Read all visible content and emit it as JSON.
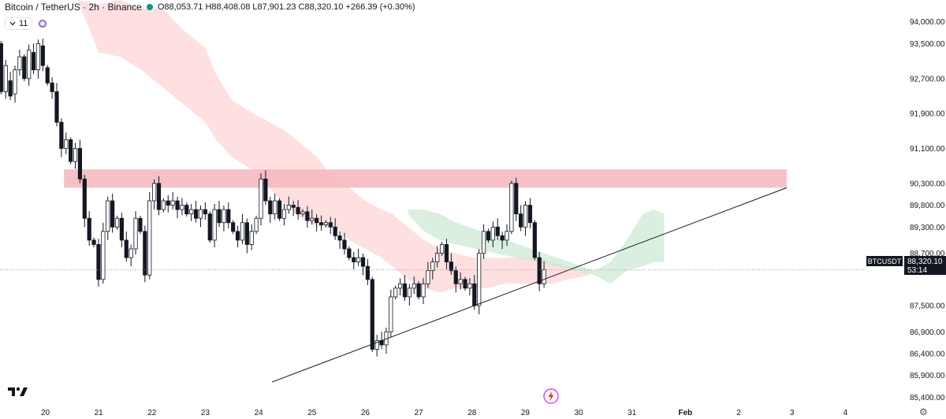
{
  "header": {
    "symbol": "Bitcoin / TetherUS · 2h · Binance",
    "open": "O88,053.71",
    "high": "H88,408.08",
    "low": "L87,901.23",
    "close": "C88,320.10",
    "change": "+266.39 (+0.30%)",
    "indicator_count": "11"
  },
  "colors": {
    "up": "#131722",
    "down": "#131722",
    "resistance_zone": "#f4b6bc",
    "cloud_bear": "#ffd6d6",
    "cloud_bull": "#cde9d4",
    "status_dot": "#089981"
  },
  "chart_data": {
    "type": "candlestick",
    "ylim": [
      85300,
      94500
    ],
    "y_ticks": [
      "94,000.00",
      "93,500.00",
      "92,700.00",
      "91,900.00",
      "91,100.00",
      "90,300.00",
      "89,800.00",
      "89,300.00",
      "88,700.00",
      "87,500.00",
      "86,900.00",
      "86,400.00",
      "85,900.00",
      "85,400.00"
    ],
    "y_tick_values": [
      94000,
      93500,
      92700,
      91900,
      91100,
      90300,
      89800,
      89300,
      88700,
      87500,
      86900,
      86400,
      85900,
      85400
    ],
    "x_ticks": [
      "20",
      "21",
      "22",
      "23",
      "24",
      "25",
      "26",
      "27",
      "28",
      "29",
      "30",
      "31",
      "Feb",
      "2",
      "3",
      "4"
    ],
    "x_tick_days": [
      20,
      21,
      22,
      23,
      24,
      25,
      26,
      27,
      28,
      29,
      30,
      31,
      32,
      33,
      34,
      35
    ],
    "xlim_days": [
      19.15,
      36.0
    ],
    "price_label": {
      "symbol": "BTCUSDT",
      "value": "88,320.10",
      "countdown": "53:14",
      "price": 88320.1
    },
    "resistance_zone": {
      "low": 90200,
      "high": 90620,
      "from_day": 20.35,
      "to_day": 33.9
    },
    "trendline": {
      "from": {
        "day": 24.25,
        "price": 85750
      },
      "to": {
        "day": 33.9,
        "price": 90200
      }
    },
    "candles": [
      [
        93500,
        92400
      ],
      [
        92400,
        93000
      ],
      [
        92650,
        92300
      ],
      [
        92350,
        92900
      ],
      [
        92900,
        93200
      ],
      [
        93200,
        92700
      ],
      [
        92700,
        93350
      ],
      [
        93300,
        92900
      ],
      [
        92900,
        93500
      ],
      [
        93450,
        93000
      ],
      [
        92950,
        92600
      ],
      [
        92600,
        92400
      ],
      [
        92400,
        91700
      ],
      [
        91700,
        91100
      ],
      [
        91100,
        91300
      ],
      [
        91300,
        90800
      ],
      [
        90800,
        91100
      ],
      [
        91100,
        90400
      ],
      [
        90400,
        89500
      ],
      [
        89500,
        89000
      ],
      [
        89000,
        88900
      ],
      [
        88900,
        88100
      ],
      [
        88100,
        89200
      ],
      [
        89200,
        89900
      ],
      [
        89900,
        89300
      ],
      [
        89300,
        89500
      ],
      [
        89500,
        89000
      ],
      [
        89000,
        88600
      ],
      [
        88600,
        88800
      ],
      [
        88800,
        89500
      ],
      [
        89500,
        89200
      ],
      [
        89200,
        88200
      ],
      [
        88200,
        89900
      ],
      [
        89900,
        90300
      ],
      [
        90300,
        89700
      ],
      [
        89700,
        89900
      ],
      [
        89900,
        89800
      ],
      [
        89800,
        89900
      ],
      [
        89900,
        89700
      ],
      [
        89700,
        89800
      ],
      [
        89800,
        89600
      ],
      [
        89600,
        89700
      ],
      [
        89700,
        89500
      ],
      [
        89500,
        89700
      ],
      [
        89700,
        89600
      ],
      [
        89600,
        89000
      ],
      [
        89000,
        89700
      ],
      [
        89700,
        89400
      ],
      [
        89400,
        89700
      ],
      [
        89700,
        89400
      ],
      [
        89400,
        89200
      ],
      [
        89200,
        89000
      ],
      [
        89000,
        89400
      ],
      [
        89400,
        88900
      ],
      [
        88900,
        89200
      ],
      [
        89200,
        89500
      ],
      [
        89500,
        90400
      ],
      [
        90400,
        89900
      ],
      [
        89900,
        89600
      ],
      [
        89600,
        89900
      ],
      [
        89900,
        89500
      ],
      [
        89500,
        89700
      ],
      [
        89700,
        89800
      ],
      [
        89800,
        89750
      ],
      [
        89750,
        89600
      ],
      [
        89600,
        89650
      ],
      [
        89650,
        89450
      ],
      [
        89450,
        89500
      ],
      [
        89500,
        89400
      ],
      [
        89400,
        89350
      ],
      [
        89350,
        89400
      ],
      [
        89400,
        89300
      ],
      [
        89300,
        89100
      ],
      [
        89100,
        89000
      ],
      [
        89000,
        88800
      ],
      [
        88800,
        88600
      ],
      [
        88600,
        88500
      ],
      [
        88500,
        88600
      ],
      [
        88600,
        88400
      ],
      [
        88400,
        88100
      ],
      [
        88100,
        86500
      ],
      [
        86500,
        86700
      ],
      [
        86700,
        86600
      ],
      [
        86600,
        86900
      ],
      [
        86900,
        87700
      ],
      [
        87700,
        87900
      ],
      [
        87900,
        88000
      ],
      [
        88000,
        87700
      ],
      [
        87700,
        87900
      ],
      [
        87900,
        88000
      ],
      [
        88000,
        87700
      ],
      [
        87700,
        88000
      ],
      [
        88000,
        88300
      ],
      [
        88300,
        88500
      ],
      [
        88500,
        88700
      ],
      [
        88700,
        88900
      ],
      [
        88900,
        88500
      ],
      [
        88500,
        88300
      ],
      [
        88300,
        88000
      ],
      [
        88000,
        88100
      ],
      [
        88100,
        87900
      ],
      [
        87900,
        88000
      ],
      [
        88000,
        87500
      ],
      [
        87500,
        88700
      ],
      [
        88700,
        89200
      ],
      [
        89200,
        89000
      ],
      [
        89000,
        89300
      ],
      [
        89300,
        89100
      ],
      [
        89100,
        89000
      ],
      [
        89000,
        89200
      ],
      [
        89200,
        90300
      ],
      [
        90300,
        89600
      ],
      [
        89600,
        89300
      ],
      [
        89300,
        89800
      ],
      [
        89800,
        89400
      ],
      [
        89400,
        88600
      ],
      [
        88600,
        88000
      ],
      [
        88000,
        88320
      ]
    ],
    "cloud_bear": [
      [
        20.6,
        94500,
        94500
      ],
      [
        21.0,
        94400,
        93300
      ],
      [
        21.4,
        94500,
        93200
      ],
      [
        21.8,
        94300,
        92900
      ],
      [
        22.2,
        94300,
        92500
      ],
      [
        22.6,
        93800,
        92100
      ],
      [
        23.0,
        93400,
        91700
      ],
      [
        23.2,
        92800,
        91300
      ],
      [
        23.5,
        92200,
        90900
      ],
      [
        23.9,
        91900,
        90600
      ],
      [
        24.2,
        91700,
        90200
      ],
      [
        24.5,
        91500,
        89800
      ],
      [
        24.8,
        91200,
        89500
      ],
      [
        25.1,
        90900,
        89300
      ],
      [
        25.4,
        90400,
        89300
      ],
      [
        25.7,
        90200,
        89000
      ],
      [
        26.0,
        89900,
        88800
      ],
      [
        26.3,
        89700,
        88600
      ],
      [
        26.5,
        89600,
        88400
      ],
      [
        26.8,
        89300,
        88100
      ],
      [
        27.1,
        89000,
        87900
      ],
      [
        27.4,
        88800,
        87800
      ],
      [
        27.7,
        88700,
        87900
      ],
      [
        28.0,
        88600,
        87900
      ],
      [
        28.3,
        88600,
        87900
      ],
      [
        28.6,
        88600,
        88000
      ],
      [
        28.9,
        88600,
        88000
      ],
      [
        29.2,
        88600,
        88000
      ],
      [
        29.5,
        88500,
        88000
      ],
      [
        29.8,
        88400,
        88100
      ],
      [
        30.2,
        88300,
        88200
      ]
    ],
    "cloud_bull": [
      [
        26.8,
        89700,
        89600
      ],
      [
        27.1,
        89700,
        89200
      ],
      [
        27.4,
        89600,
        89000
      ],
      [
        27.7,
        89400,
        88900
      ],
      [
        30.3,
        88300,
        88200
      ],
      [
        30.6,
        88500,
        88000
      ],
      [
        30.9,
        89000,
        88300
      ],
      [
        31.2,
        89600,
        88400
      ],
      [
        31.4,
        89700,
        88500
      ],
      [
        31.6,
        89600,
        88500
      ]
    ]
  }
}
